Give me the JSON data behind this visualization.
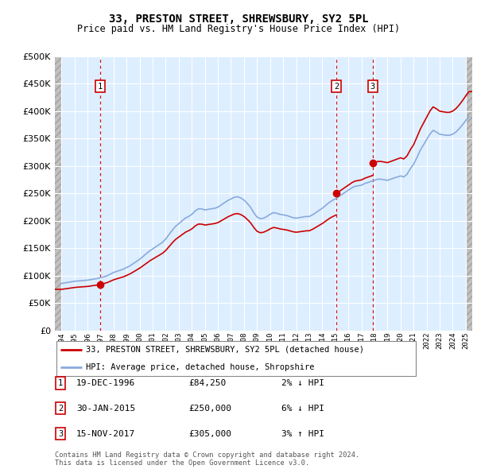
{
  "title": "33, PRESTON STREET, SHREWSBURY, SY2 5PL",
  "subtitle": "Price paid vs. HM Land Registry's House Price Index (HPI)",
  "hpi_label": "HPI: Average price, detached house, Shropshire",
  "property_label": "33, PRESTON STREET, SHREWSBURY, SY2 5PL (detached house)",
  "footer1": "Contains HM Land Registry data © Crown copyright and database right 2024.",
  "footer2": "This data is licensed under the Open Government Licence v3.0.",
  "transactions": [
    {
      "num": 1,
      "date": "19-DEC-1996",
      "price": 84250,
      "pct": "2%",
      "dir": "↓",
      "year": 1996.97
    },
    {
      "num": 2,
      "date": "30-JAN-2015",
      "price": 250000,
      "pct": "6%",
      "dir": "↓",
      "year": 2015.08
    },
    {
      "num": 3,
      "date": "15-NOV-2017",
      "price": 305000,
      "pct": "3%",
      "dir": "↑",
      "year": 2017.87
    }
  ],
  "hpi_color": "#88aadd",
  "price_color": "#cc0000",
  "marker_color": "#cc0000",
  "vline_color": "#cc0000",
  "bg_chart": "#ddeeff",
  "grid_color": "#ffffff",
  "ylim": [
    0,
    500000
  ],
  "yticks": [
    0,
    50000,
    100000,
    150000,
    200000,
    250000,
    300000,
    350000,
    400000,
    450000,
    500000
  ],
  "xlim_start": 1993.5,
  "xlim_end": 2025.5,
  "hpi_data": {
    "1994-01": 86000,
    "1994-04": 87000,
    "1994-07": 88000,
    "1994-10": 89000,
    "1995-01": 90000,
    "1995-04": 90500,
    "1995-07": 91000,
    "1995-10": 91500,
    "1996-01": 92000,
    "1996-04": 93000,
    "1996-07": 94000,
    "1996-10": 95000,
    "1997-01": 96500,
    "1997-04": 98000,
    "1997-07": 100000,
    "1997-10": 103000,
    "1998-01": 106000,
    "1998-04": 108000,
    "1998-07": 110000,
    "1998-10": 112000,
    "1999-01": 115000,
    "1999-04": 118000,
    "1999-07": 122000,
    "1999-10": 126000,
    "2000-01": 130000,
    "2000-04": 135000,
    "2000-07": 140000,
    "2000-10": 145000,
    "2001-01": 149000,
    "2001-04": 153000,
    "2001-07": 157000,
    "2001-10": 161000,
    "2002-01": 167000,
    "2002-04": 175000,
    "2002-07": 183000,
    "2002-10": 190000,
    "2003-01": 195000,
    "2003-04": 200000,
    "2003-07": 205000,
    "2003-10": 208000,
    "2004-01": 212000,
    "2004-04": 218000,
    "2004-07": 222000,
    "2004-10": 222000,
    "2005-01": 220000,
    "2005-04": 221000,
    "2005-07": 222000,
    "2005-10": 223000,
    "2006-01": 225000,
    "2006-04": 229000,
    "2006-07": 233000,
    "2006-10": 237000,
    "2007-01": 240000,
    "2007-04": 243000,
    "2007-07": 244000,
    "2007-10": 242000,
    "2008-01": 238000,
    "2008-04": 232000,
    "2008-07": 225000,
    "2008-10": 215000,
    "2009-01": 207000,
    "2009-04": 204000,
    "2009-07": 205000,
    "2009-10": 208000,
    "2010-01": 212000,
    "2010-04": 215000,
    "2010-07": 214000,
    "2010-10": 212000,
    "2011-01": 211000,
    "2011-04": 210000,
    "2011-07": 208000,
    "2011-10": 206000,
    "2012-01": 205000,
    "2012-04": 206000,
    "2012-07": 207000,
    "2012-10": 208000,
    "2013-01": 208000,
    "2013-04": 211000,
    "2013-07": 215000,
    "2013-10": 219000,
    "2014-01": 223000,
    "2014-04": 228000,
    "2014-07": 233000,
    "2014-10": 237000,
    "2015-01": 240000,
    "2015-04": 244000,
    "2015-07": 248000,
    "2015-10": 252000,
    "2016-01": 256000,
    "2016-04": 260000,
    "2016-07": 263000,
    "2016-10": 264000,
    "2017-01": 265000,
    "2017-04": 268000,
    "2017-07": 270000,
    "2017-10": 272000,
    "2018-01": 274000,
    "2018-04": 276000,
    "2018-07": 276000,
    "2018-10": 275000,
    "2019-01": 274000,
    "2019-04": 276000,
    "2019-07": 278000,
    "2019-10": 280000,
    "2020-01": 282000,
    "2020-04": 280000,
    "2020-07": 285000,
    "2020-10": 295000,
    "2021-01": 303000,
    "2021-04": 315000,
    "2021-07": 328000,
    "2021-10": 338000,
    "2022-01": 348000,
    "2022-04": 358000,
    "2022-07": 365000,
    "2022-10": 362000,
    "2023-01": 358000,
    "2023-04": 357000,
    "2023-07": 356000,
    "2023-10": 356000,
    "2024-01": 358000,
    "2024-04": 362000,
    "2024-07": 368000,
    "2024-10": 375000,
    "2025-01": 383000,
    "2025-04": 390000
  }
}
